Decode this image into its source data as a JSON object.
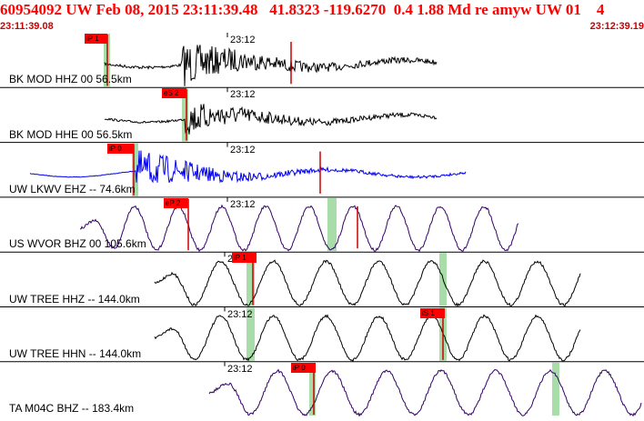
{
  "header": {
    "title": "60954092 UW Feb 08, 2015 23:11:39.48   41.8323 -119.6270  0.4 1.88 Md re amyw UW 01    4",
    "start_time": "23:11:39.08",
    "end_time": "23:12:39.19"
  },
  "tick_text": "23:12",
  "colors": {
    "header_red": "#ff0000",
    "pick_red": "#ff0000",
    "pick_line": "#cc0000",
    "window_green": "#a8dca8",
    "trace_black": "#000000",
    "trace_blue": "#0000ee",
    "trace_purple": "#330066"
  },
  "panels": [
    {
      "label": "BK MOD HHZ 00 56.5km",
      "pick": "iP 1",
      "color": "black"
    },
    {
      "label": "BK MOD HHE 00 56.5km",
      "pick": "eS 2",
      "color": "black"
    },
    {
      "label": "UW LKWV EHZ -- 74.6km",
      "pick": "iP 0",
      "color": "blue"
    },
    {
      "label": "US WVOR BHZ 00 105.6km",
      "pick": "eP 2",
      "color": "purple"
    },
    {
      "label": "UW TREE HHZ -- 144.0km",
      "pick": "iP 1",
      "color": "black"
    },
    {
      "label": "UW TREE HHN -- 144.0km",
      "pick": "iS 1",
      "color": "black"
    },
    {
      "label": "TA M04C BHZ -- 183.4km",
      "pick": "iP 0",
      "color": "purple"
    }
  ]
}
